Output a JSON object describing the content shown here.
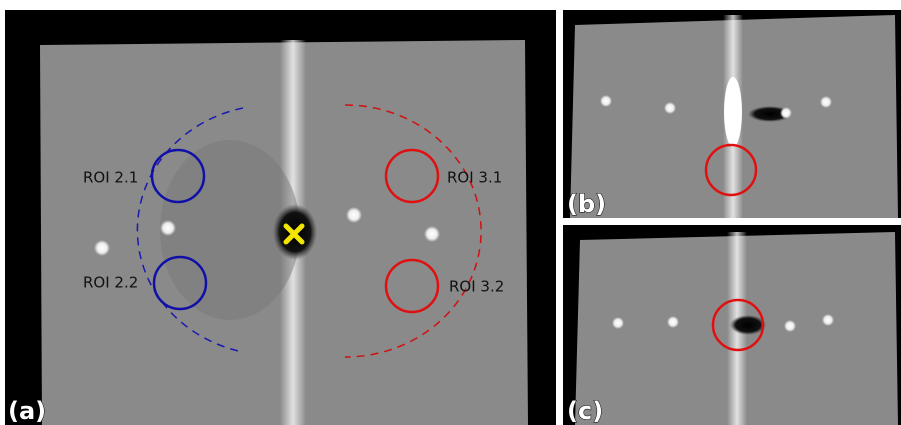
{
  "panel_a": {
    "label": "(a)",
    "roi_labels": [
      "ROI 2.1",
      "ROI 2.2",
      "ROI 3.1",
      "ROI 3.2"
    ]
  },
  "panel_b": {
    "label": "(b)"
  },
  "panel_c": {
    "label": "(c)"
  }
}
